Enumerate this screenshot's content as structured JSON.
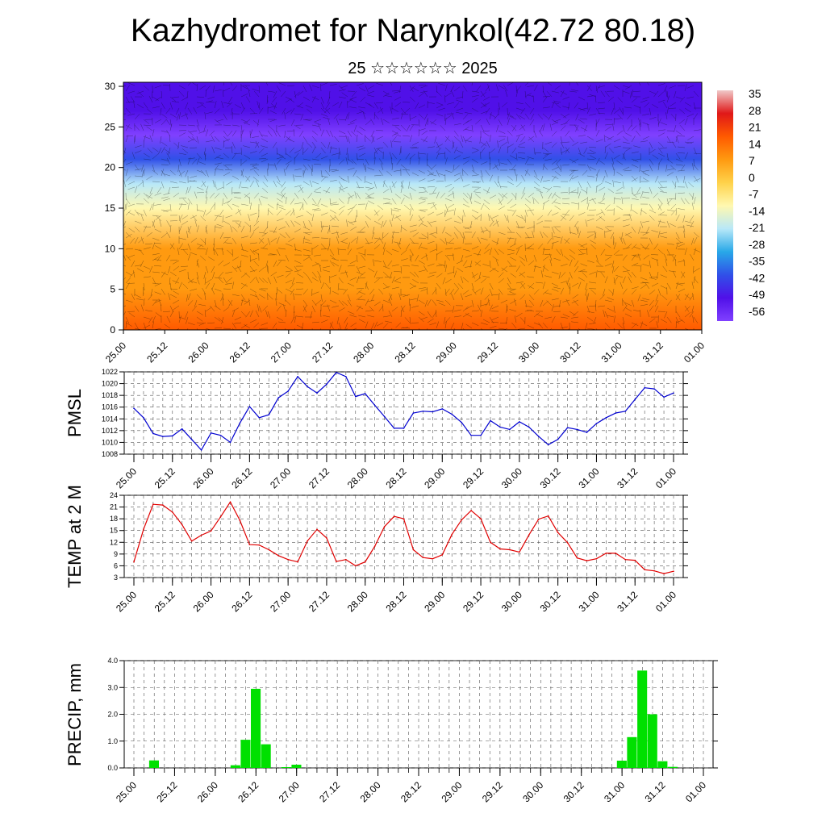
{
  "title": "Kazhydromet for Narynkol(42.72 80.18)",
  "subtitle": "25 ☆☆☆☆☆☆ 2025",
  "time_labels": [
    "25.00",
    "25.12",
    "26.00",
    "26.12",
    "27.00",
    "27.12",
    "28.00",
    "28.12",
    "29.00",
    "29.12",
    "30.00",
    "30.12",
    "31.00",
    "31.12",
    "01.00"
  ],
  "chart_data": [
    {
      "type": "heatmap",
      "title": "",
      "x": [
        "25.00",
        "25.12",
        "26.00",
        "26.12",
        "27.00",
        "27.12",
        "28.00",
        "28.12",
        "29.00",
        "29.12",
        "30.00",
        "30.12",
        "31.00",
        "31.12",
        "01.00"
      ],
      "y_ticks": [
        0,
        5,
        10,
        15,
        20,
        25,
        30
      ],
      "ylim": [
        0,
        30.5
      ],
      "colorbar": {
        "labels": [
          "35",
          "28",
          "21",
          "14",
          "7",
          "0",
          "-7",
          "-14",
          "-21",
          "-28",
          "-35",
          "-42",
          "-49",
          "-56"
        ],
        "stops": [
          "#f0c8c8",
          "#e01818",
          "#ff5a00",
          "#ff9a10",
          "#ffd24a",
          "#fff8b0",
          "#b8e8f8",
          "#28a8e8",
          "#3050e8",
          "#5010e8",
          "#8040ff"
        ]
      },
      "profile_temperature_c": [
        {
          "height": 0,
          "value": 18
        },
        {
          "height": 5,
          "value": 10
        },
        {
          "height": 10,
          "value": 3
        },
        {
          "height": 15,
          "value": -8
        },
        {
          "height": 18,
          "value": -20
        },
        {
          "height": 21,
          "value": -40
        },
        {
          "height": 24,
          "value": -60
        },
        {
          "height": 27,
          "value": -55
        },
        {
          "height": 30,
          "value": -50
        }
      ]
    },
    {
      "type": "line",
      "ylabel": "PMSL",
      "ylim": [
        1008,
        1022
      ],
      "yticks": [
        1008,
        1010,
        1012,
        1014,
        1016,
        1018,
        1020,
        1022
      ],
      "color": "#0000d0",
      "x": [
        "25.00",
        "25.03",
        "25.06",
        "25.09",
        "25.12",
        "25.15",
        "25.18",
        "25.21",
        "26.00",
        "26.03",
        "26.06",
        "26.09",
        "26.12",
        "26.15",
        "26.18",
        "26.21",
        "27.00",
        "27.03",
        "27.06",
        "27.09",
        "27.12",
        "27.15",
        "27.18",
        "27.21",
        "28.00",
        "28.03",
        "28.06",
        "28.09",
        "28.12",
        "28.15",
        "28.18",
        "28.21",
        "29.00",
        "29.03",
        "29.06",
        "29.09",
        "29.12",
        "29.15",
        "29.18",
        "29.21",
        "30.00",
        "30.03",
        "30.06",
        "30.09",
        "30.12",
        "30.15",
        "30.18",
        "30.21",
        "31.00",
        "31.03",
        "31.06",
        "31.09",
        "31.12",
        "31.15",
        "31.18",
        "31.21",
        "01.00"
      ],
      "values": [
        1015.8,
        1014.2,
        1011.5,
        1011.0,
        1011.1,
        1012.3,
        1010.5,
        1008.7,
        1011.6,
        1011.2,
        1010.0,
        1013.3,
        1016.1,
        1014.2,
        1014.7,
        1017.6,
        1018.7,
        1021.2,
        1019.5,
        1018.4,
        1019.9,
        1021.9,
        1021.2,
        1017.8,
        1018.3,
        1016.3,
        1014.4,
        1012.4,
        1012.4,
        1015.0,
        1015.3,
        1015.2,
        1015.7,
        1014.8,
        1013.4,
        1011.2,
        1011.2,
        1013.7,
        1012.6,
        1012.2,
        1013.5,
        1012.6,
        1011.0,
        1009.6,
        1010.5,
        1012.5,
        1012.2,
        1011.7,
        1013.2,
        1014.2,
        1015.0,
        1015.3,
        1017.3,
        1019.3,
        1019.1,
        1017.7,
        1018.4
      ]
    },
    {
      "type": "line",
      "ylabel": "TEMP at 2 M",
      "ylim": [
        3,
        24
      ],
      "yticks": [
        3,
        6,
        9,
        12,
        15,
        18,
        21,
        24
      ],
      "color": "#e00000",
      "x": [
        "25.00",
        "25.03",
        "25.06",
        "25.09",
        "25.12",
        "25.15",
        "25.18",
        "25.21",
        "26.00",
        "26.03",
        "26.06",
        "26.09",
        "26.12",
        "26.15",
        "26.18",
        "26.21",
        "27.00",
        "27.03",
        "27.06",
        "27.09",
        "27.12",
        "27.15",
        "27.18",
        "27.21",
        "28.00",
        "28.03",
        "28.06",
        "28.09",
        "28.12",
        "28.15",
        "28.18",
        "28.21",
        "29.00",
        "29.03",
        "29.06",
        "29.09",
        "29.12",
        "29.15",
        "29.18",
        "29.21",
        "30.00",
        "30.03",
        "30.06",
        "30.09",
        "30.12",
        "30.15",
        "30.18",
        "30.21",
        "31.00",
        "31.03",
        "31.06",
        "31.09",
        "31.12",
        "31.15",
        "31.18",
        "31.21",
        "01.00"
      ],
      "values": [
        7.0,
        15.3,
        21.7,
        21.5,
        19.7,
        16.5,
        12.3,
        13.8,
        14.9,
        18.5,
        22.3,
        17.6,
        11.4,
        11.3,
        10.1,
        8.6,
        7.6,
        7.0,
        12.3,
        15.3,
        13.1,
        7.1,
        7.6,
        6.0,
        7.0,
        11.0,
        16.0,
        18.6,
        18.0,
        10.1,
        8.1,
        7.8,
        8.8,
        14.0,
        17.7,
        20.1,
        18.0,
        12.0,
        10.3,
        10.1,
        9.5,
        13.9,
        17.9,
        18.7,
        14.5,
        11.9,
        8.0,
        7.3,
        7.8,
        9.2,
        9.2,
        7.6,
        7.4,
        5.0,
        4.7,
        4.0,
        4.6
      ]
    },
    {
      "type": "bar",
      "ylabel": "PRECIP, mm",
      "ylim": [
        0,
        4
      ],
      "ytick_labels": [
        "0.0",
        "1.0",
        "2.0",
        "3.0",
        "4.0"
      ],
      "color": "#00e000",
      "x": [
        "25.00",
        "25.03",
        "25.06",
        "25.09",
        "25.12",
        "25.15",
        "25.18",
        "25.21",
        "26.00",
        "26.03",
        "26.06",
        "26.09",
        "26.12",
        "26.15",
        "26.18",
        "26.21",
        "27.00",
        "27.03",
        "27.06",
        "27.09",
        "27.12",
        "27.15",
        "27.18",
        "27.21",
        "28.00",
        "28.03",
        "28.06",
        "28.09",
        "28.12",
        "28.15",
        "28.18",
        "28.21",
        "29.00",
        "29.03",
        "29.06",
        "29.09",
        "29.12",
        "29.15",
        "29.18",
        "29.21",
        "30.00",
        "30.03",
        "30.06",
        "30.09",
        "30.12",
        "30.15",
        "30.18",
        "30.21",
        "31.00",
        "31.03",
        "31.06",
        "31.09",
        "31.12",
        "31.15",
        "31.18",
        "31.21",
        "01.00"
      ],
      "values": [
        0,
        0,
        0.28,
        0,
        0,
        0,
        0,
        0,
        0,
        0,
        0.1,
        1.05,
        2.95,
        0.88,
        0,
        0.03,
        0.12,
        0,
        0,
        0,
        0,
        0,
        0,
        0,
        0,
        0,
        0,
        0,
        0,
        0,
        0,
        0,
        0,
        0,
        0,
        0,
        0,
        0,
        0,
        0,
        0,
        0,
        0,
        0,
        0,
        0,
        0,
        0,
        0.27,
        1.15,
        3.63,
        2.0,
        0.25,
        0.04,
        0,
        0,
        0
      ]
    }
  ]
}
